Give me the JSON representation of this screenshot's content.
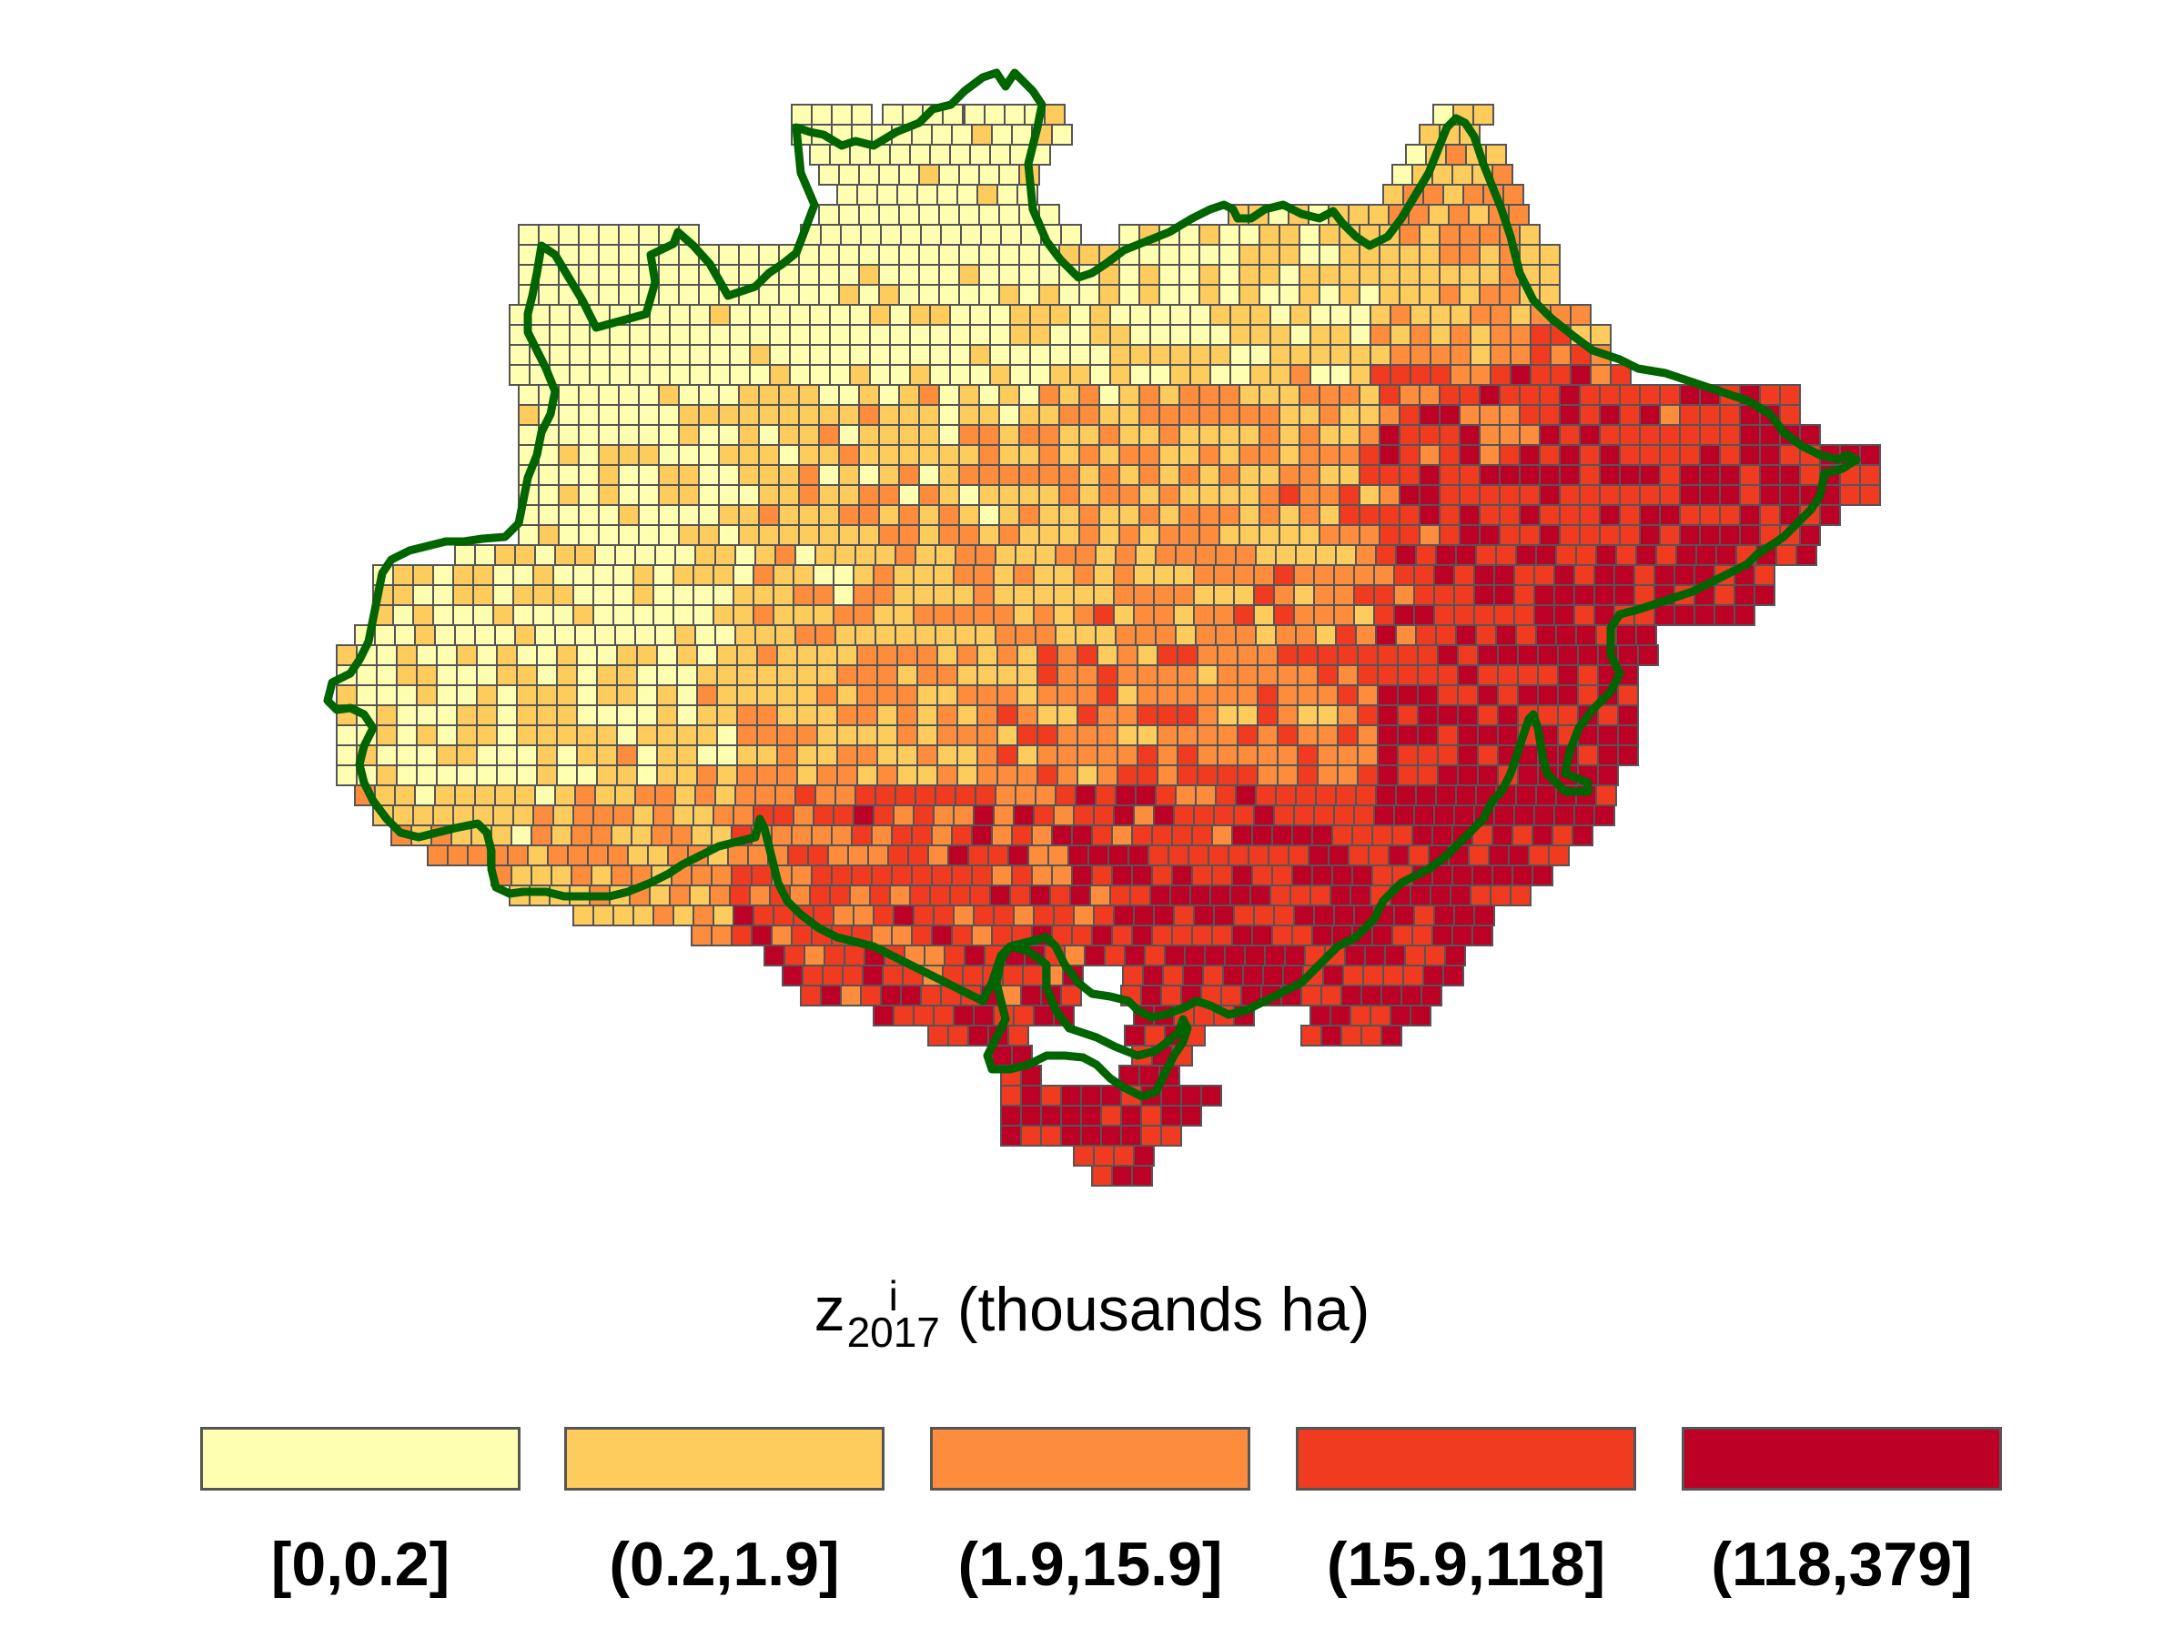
{
  "legend": {
    "title_var": "z",
    "title_sup": "i",
    "title_sub": "2017",
    "title_unit": "(thousands ha)",
    "classes": [
      {
        "label": "[0,0.2]",
        "color": "#FFFFB2"
      },
      {
        "label": "(0.2,1.9]",
        "color": "#FECC5C"
      },
      {
        "label": "(1.9,15.9]",
        "color": "#FD8D3C"
      },
      {
        "label": "(15.9,118]",
        "color": "#F03B20"
      },
      {
        "label": "(118,379]",
        "color": "#BD0026"
      }
    ]
  },
  "colors": {
    "grid_border": "#555555",
    "boundary": "#006400"
  }
}
